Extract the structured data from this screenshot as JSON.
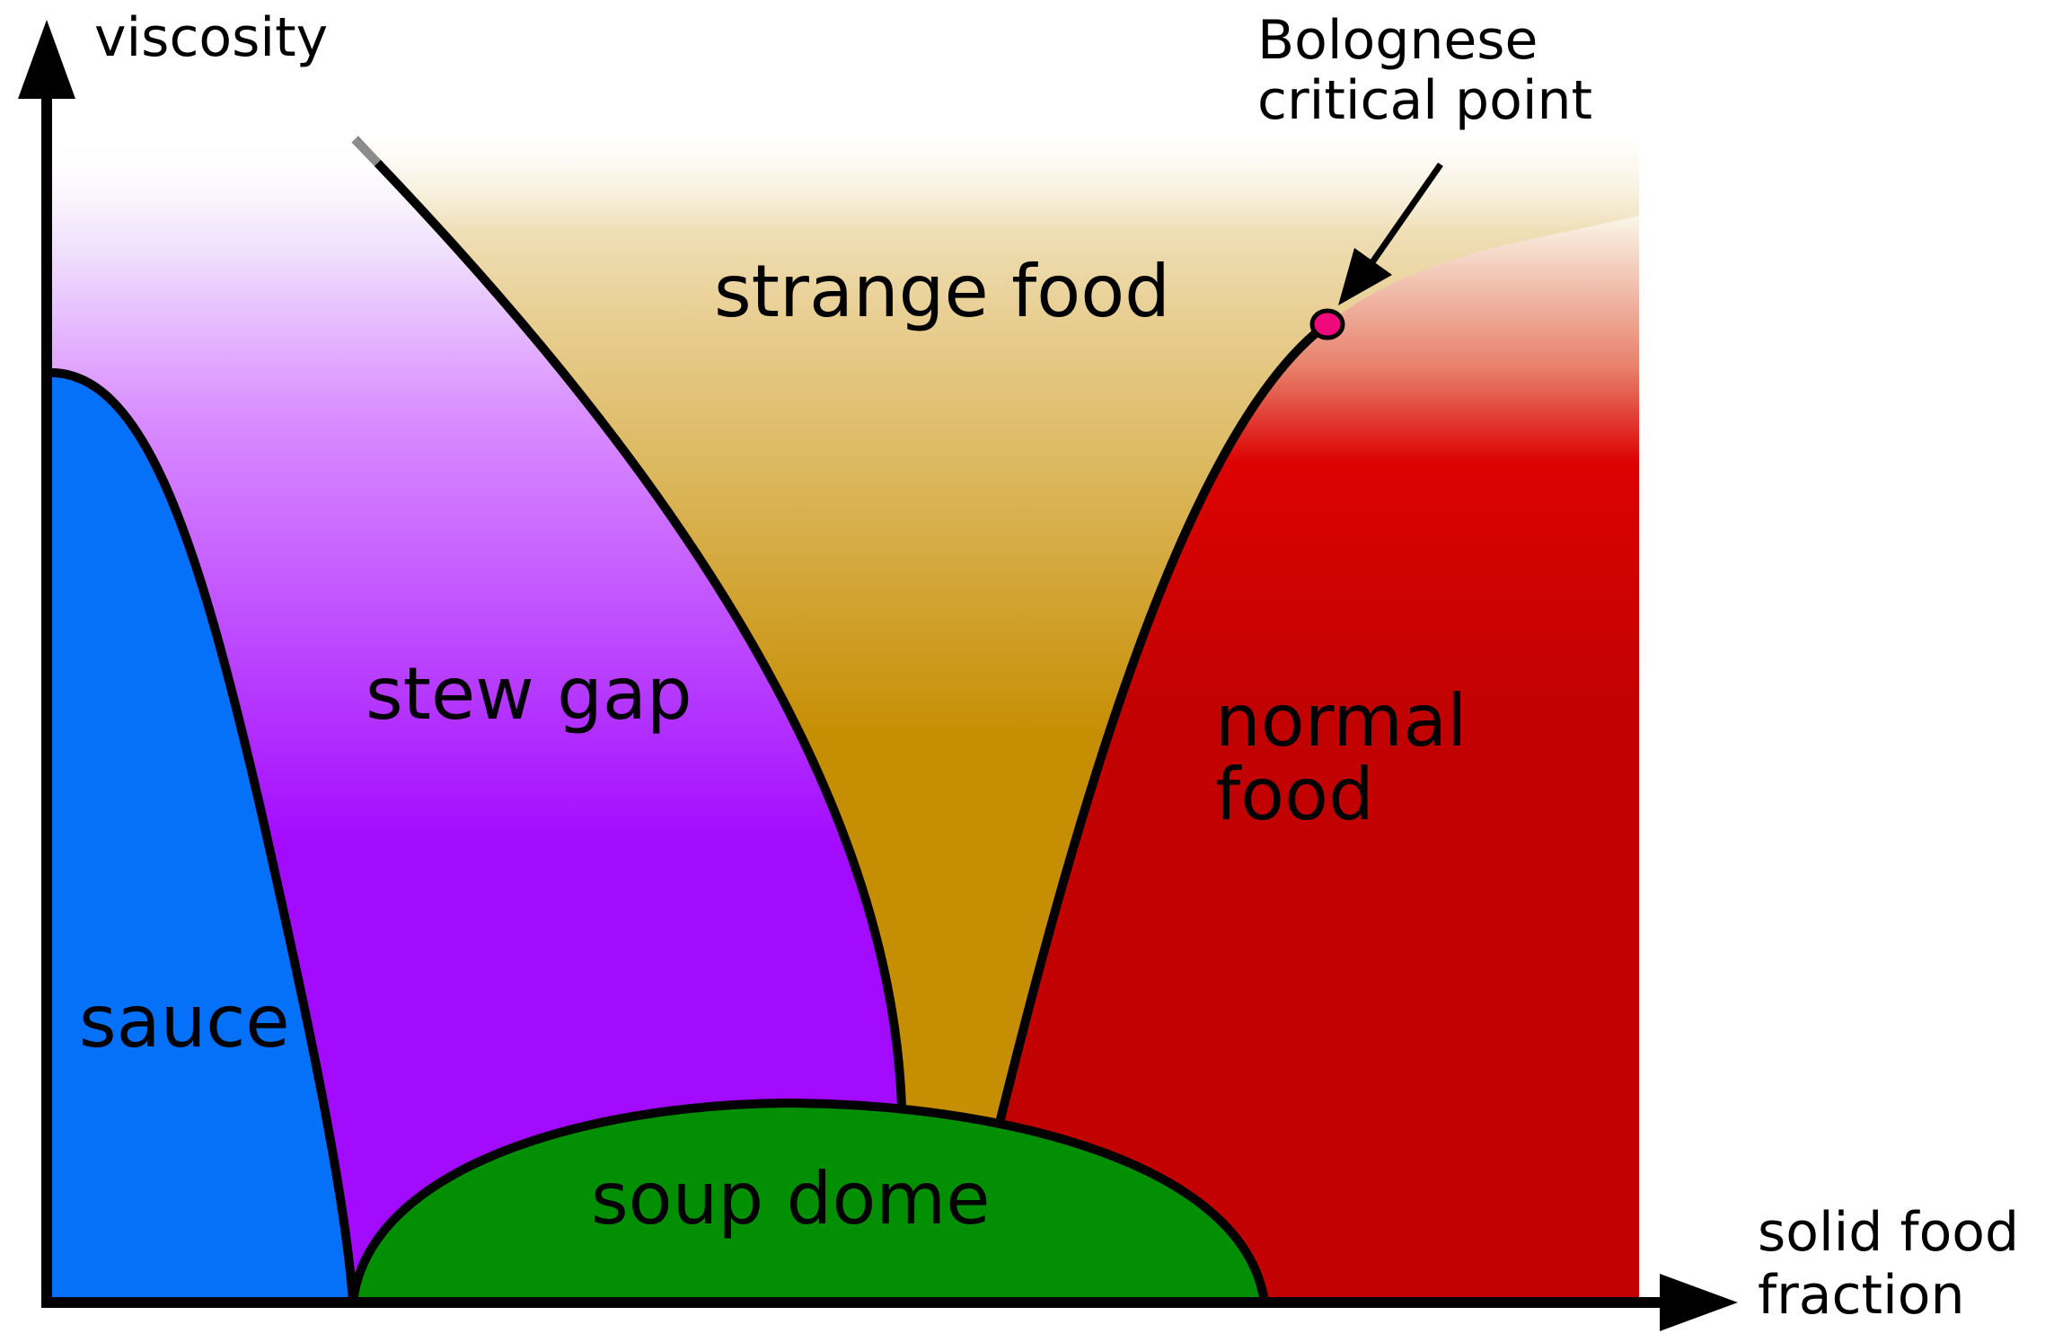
{
  "diagram": {
    "axes": {
      "y_label": "viscosity",
      "x_label_line1": "solid food",
      "x_label_line2": "fraction"
    },
    "regions": {
      "sauce": "sauce",
      "stew_gap": "stew gap",
      "strange_food": "strange food",
      "normal_food_line1": "normal",
      "normal_food_line2": "food",
      "soup_dome": "soup dome"
    },
    "annotation": {
      "line1": "Bolognese",
      "line2": "critical point"
    },
    "colors": {
      "sauce": "#0570f8",
      "stew_gap": "#a30bff",
      "strange_food": "#c68e02",
      "normal_food": "#c20202",
      "soup_dome": "#038f03",
      "critical_point": "#ee0a7c",
      "outline": "#000000"
    }
  }
}
